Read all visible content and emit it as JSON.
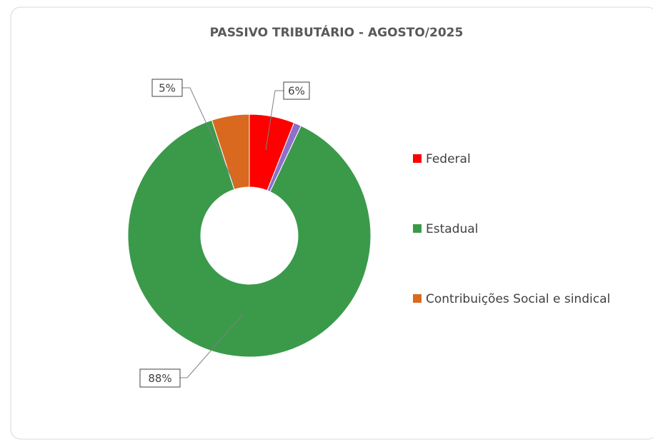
{
  "chart_data": {
    "type": "donut",
    "title": "PASSIVO TRIBUTÁRIO - AGOSTO/2025",
    "categories": [
      "Federal",
      null,
      "Estadual",
      "Contribuições Social e sindical"
    ],
    "values": [
      6,
      1,
      88,
      5
    ],
    "value_labels": [
      "6%",
      null,
      "88%",
      "5%"
    ],
    "colors": [
      "#ff0000",
      "#8e6fc9",
      "#3a9a4a",
      "#d9691f"
    ],
    "legend": "right"
  }
}
